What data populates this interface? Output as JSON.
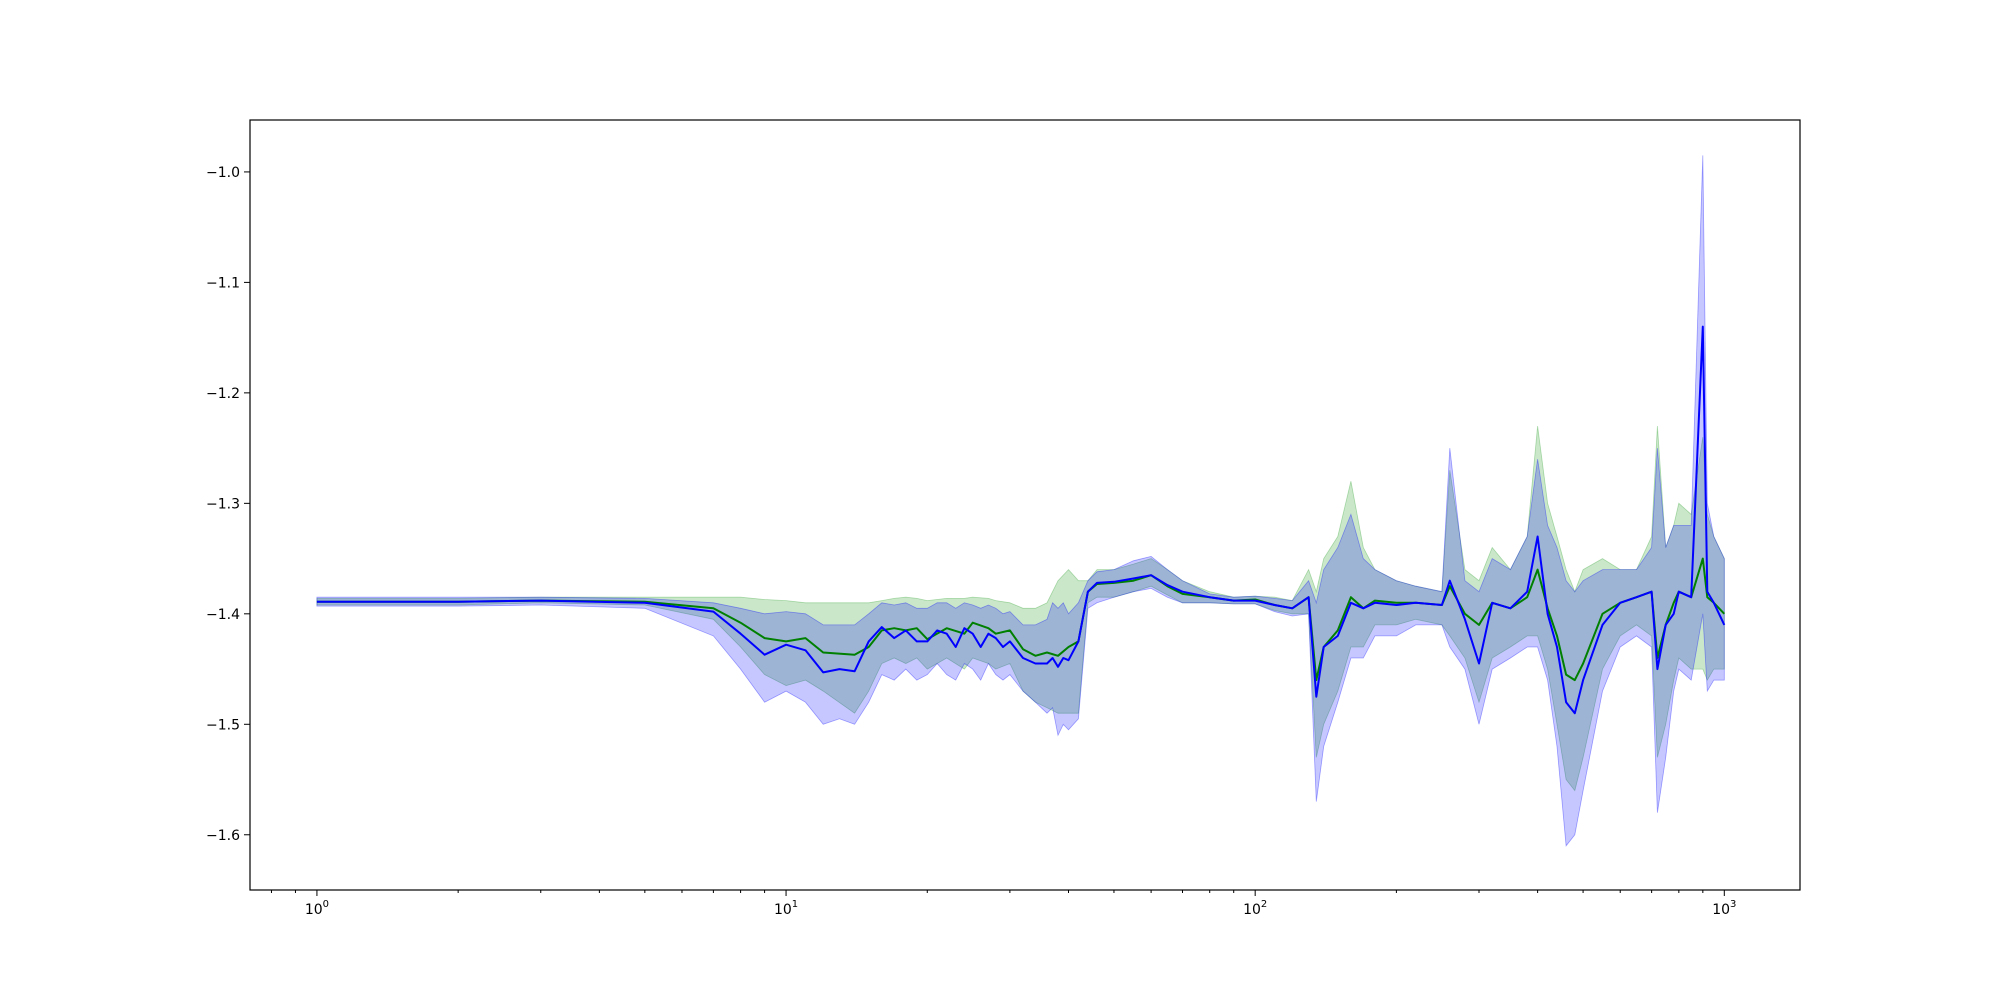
{
  "chart_data": {
    "type": "line",
    "title": "",
    "xlabel": "",
    "ylabel": "",
    "xscale": "log",
    "xlim": [
      0.72,
      1450
    ],
    "ylim": [
      -1.65,
      -0.953
    ],
    "grid": false,
    "y_ticks": [
      -1.0,
      -1.1,
      -1.2,
      -1.3,
      -1.4,
      -1.5,
      -1.6
    ],
    "y_tick_labels": [
      "−1.0",
      "−1.1",
      "−1.2",
      "−1.3",
      "−1.4",
      "−1.5",
      "−1.6"
    ],
    "x_ticks": [
      1,
      10,
      100,
      1000
    ],
    "x_tick_labels": [
      {
        "base": "10",
        "exp": "0"
      },
      {
        "base": "10",
        "exp": "1"
      },
      {
        "base": "10",
        "exp": "2"
      },
      {
        "base": "10",
        "exp": "3"
      }
    ],
    "colors": {
      "green_line": "#008000",
      "green_band": "#2ca02c",
      "blue_line": "#0000ff",
      "blue_band": "#0000ff",
      "overlap_band": "#5b7db8"
    },
    "series": [
      {
        "color": "#008000",
        "x": [
          1,
          2,
          3,
          5,
          7,
          8,
          9,
          10,
          11,
          12,
          14,
          15,
          16,
          17,
          18,
          19,
          20,
          22,
          24,
          25,
          27,
          28,
          30,
          32,
          34,
          36,
          38,
          40,
          42,
          44,
          46,
          50,
          55,
          60,
          65,
          70,
          80,
          90,
          100,
          110,
          120,
          130,
          135,
          140,
          150,
          160,
          170,
          180,
          200,
          220,
          250,
          260,
          280,
          300,
          320,
          350,
          380,
          400,
          420,
          440,
          460,
          480,
          500,
          550,
          600,
          650,
          700,
          720,
          750,
          780,
          800,
          850,
          900,
          920,
          950,
          1000
        ],
        "y": [
          -1.389,
          -1.389,
          -1.388,
          -1.389,
          -1.395,
          -1.408,
          -1.422,
          -1.425,
          -1.422,
          -1.435,
          -1.437,
          -1.43,
          -1.415,
          -1.413,
          -1.415,
          -1.413,
          -1.423,
          -1.413,
          -1.418,
          -1.408,
          -1.413,
          -1.418,
          -1.415,
          -1.432,
          -1.438,
          -1.435,
          -1.438,
          -1.43,
          -1.425,
          -1.38,
          -1.373,
          -1.372,
          -1.37,
          -1.365,
          -1.375,
          -1.382,
          -1.385,
          -1.388,
          -1.387,
          -1.392,
          -1.395,
          -1.385,
          -1.46,
          -1.43,
          -1.415,
          -1.385,
          -1.395,
          -1.388,
          -1.39,
          -1.39,
          -1.392,
          -1.375,
          -1.4,
          -1.41,
          -1.39,
          -1.395,
          -1.385,
          -1.36,
          -1.395,
          -1.42,
          -1.455,
          -1.46,
          -1.445,
          -1.4,
          -1.39,
          -1.385,
          -1.38,
          -1.44,
          -1.41,
          -1.39,
          -1.38,
          -1.385,
          -1.35,
          -1.385,
          -1.39,
          -1.4
        ],
        "lower": [
          -1.392,
          -1.392,
          -1.39,
          -1.392,
          -1.405,
          -1.43,
          -1.455,
          -1.465,
          -1.46,
          -1.47,
          -1.49,
          -1.47,
          -1.445,
          -1.44,
          -1.445,
          -1.44,
          -1.45,
          -1.44,
          -1.45,
          -1.44,
          -1.445,
          -1.45,
          -1.445,
          -1.47,
          -1.48,
          -1.485,
          -1.49,
          -1.49,
          -1.49,
          -1.39,
          -1.385,
          -1.385,
          -1.38,
          -1.375,
          -1.383,
          -1.39,
          -1.39,
          -1.391,
          -1.391,
          -1.397,
          -1.4,
          -1.4,
          -1.53,
          -1.5,
          -1.47,
          -1.43,
          -1.43,
          -1.41,
          -1.41,
          -1.405,
          -1.41,
          -1.42,
          -1.44,
          -1.48,
          -1.44,
          -1.43,
          -1.42,
          -1.42,
          -1.45,
          -1.5,
          -1.55,
          -1.56,
          -1.53,
          -1.45,
          -1.42,
          -1.41,
          -1.42,
          -1.53,
          -1.5,
          -1.46,
          -1.44,
          -1.45,
          -1.45,
          -1.46,
          -1.45,
          -1.45
        ],
        "upper": [
          -1.386,
          -1.386,
          -1.385,
          -1.385,
          -1.385,
          -1.385,
          -1.387,
          -1.388,
          -1.39,
          -1.39,
          -1.39,
          -1.39,
          -1.388,
          -1.386,
          -1.385,
          -1.386,
          -1.388,
          -1.386,
          -1.386,
          -1.385,
          -1.386,
          -1.388,
          -1.39,
          -1.395,
          -1.395,
          -1.39,
          -1.37,
          -1.36,
          -1.37,
          -1.37,
          -1.36,
          -1.36,
          -1.355,
          -1.35,
          -1.36,
          -1.37,
          -1.38,
          -1.385,
          -1.384,
          -1.385,
          -1.388,
          -1.36,
          -1.38,
          -1.35,
          -1.33,
          -1.28,
          -1.34,
          -1.36,
          -1.37,
          -1.375,
          -1.38,
          -1.27,
          -1.36,
          -1.37,
          -1.34,
          -1.36,
          -1.33,
          -1.23,
          -1.3,
          -1.33,
          -1.36,
          -1.38,
          -1.36,
          -1.35,
          -1.36,
          -1.36,
          -1.33,
          -1.23,
          -1.34,
          -1.32,
          -1.3,
          -1.31,
          -1.24,
          -1.31,
          -1.33,
          -1.35
        ]
      },
      {
        "color": "#0000ff",
        "x": [
          1,
          2,
          3,
          5,
          7,
          8,
          9,
          10,
          11,
          12,
          13,
          14,
          15,
          16,
          17,
          18,
          19,
          20,
          21,
          22,
          23,
          24,
          25,
          26,
          27,
          28,
          29,
          30,
          32,
          34,
          36,
          37,
          38,
          39,
          40,
          42,
          44,
          46,
          50,
          55,
          60,
          65,
          70,
          80,
          90,
          100,
          110,
          120,
          130,
          135,
          140,
          150,
          160,
          170,
          180,
          200,
          220,
          250,
          260,
          280,
          300,
          320,
          350,
          380,
          400,
          420,
          440,
          460,
          480,
          500,
          550,
          600,
          650,
          700,
          720,
          750,
          780,
          800,
          850,
          900,
          920,
          950,
          1000
        ],
        "y": [
          -1.389,
          -1.389,
          -1.388,
          -1.39,
          -1.398,
          -1.418,
          -1.437,
          -1.428,
          -1.433,
          -1.453,
          -1.45,
          -1.452,
          -1.425,
          -1.412,
          -1.422,
          -1.415,
          -1.425,
          -1.425,
          -1.415,
          -1.418,
          -1.43,
          -1.413,
          -1.418,
          -1.43,
          -1.418,
          -1.422,
          -1.43,
          -1.425,
          -1.44,
          -1.445,
          -1.445,
          -1.44,
          -1.448,
          -1.44,
          -1.442,
          -1.425,
          -1.38,
          -1.372,
          -1.371,
          -1.368,
          -1.365,
          -1.374,
          -1.38,
          -1.385,
          -1.388,
          -1.388,
          -1.392,
          -1.395,
          -1.385,
          -1.475,
          -1.43,
          -1.42,
          -1.39,
          -1.395,
          -1.39,
          -1.392,
          -1.39,
          -1.392,
          -1.37,
          -1.405,
          -1.445,
          -1.39,
          -1.395,
          -1.38,
          -1.33,
          -1.4,
          -1.43,
          -1.48,
          -1.49,
          -1.46,
          -1.41,
          -1.39,
          -1.385,
          -1.38,
          -1.45,
          -1.41,
          -1.4,
          -1.38,
          -1.385,
          -1.14,
          -1.38,
          -1.39,
          -1.41
        ],
        "lower": [
          -1.393,
          -1.393,
          -1.392,
          -1.395,
          -1.42,
          -1.45,
          -1.48,
          -1.47,
          -1.48,
          -1.5,
          -1.495,
          -1.5,
          -1.48,
          -1.455,
          -1.46,
          -1.45,
          -1.46,
          -1.455,
          -1.445,
          -1.455,
          -1.46,
          -1.445,
          -1.45,
          -1.46,
          -1.445,
          -1.455,
          -1.46,
          -1.455,
          -1.47,
          -1.48,
          -1.49,
          -1.485,
          -1.51,
          -1.5,
          -1.505,
          -1.495,
          -1.395,
          -1.39,
          -1.385,
          -1.38,
          -1.377,
          -1.385,
          -1.39,
          -1.39,
          -1.391,
          -1.391,
          -1.398,
          -1.402,
          -1.4,
          -1.57,
          -1.52,
          -1.48,
          -1.44,
          -1.44,
          -1.42,
          -1.42,
          -1.41,
          -1.41,
          -1.43,
          -1.45,
          -1.5,
          -1.45,
          -1.44,
          -1.43,
          -1.43,
          -1.46,
          -1.52,
          -1.61,
          -1.6,
          -1.56,
          -1.47,
          -1.43,
          -1.42,
          -1.43,
          -1.58,
          -1.53,
          -1.47,
          -1.45,
          -1.46,
          -1.4,
          -1.47,
          -1.46,
          -1.46
        ],
        "upper": [
          -1.385,
          -1.385,
          -1.385,
          -1.386,
          -1.39,
          -1.395,
          -1.4,
          -1.398,
          -1.4,
          -1.41,
          -1.41,
          -1.41,
          -1.4,
          -1.39,
          -1.392,
          -1.39,
          -1.395,
          -1.395,
          -1.39,
          -1.39,
          -1.395,
          -1.39,
          -1.392,
          -1.395,
          -1.392,
          -1.395,
          -1.4,
          -1.398,
          -1.41,
          -1.41,
          -1.405,
          -1.39,
          -1.395,
          -1.39,
          -1.4,
          -1.39,
          -1.37,
          -1.362,
          -1.36,
          -1.352,
          -1.348,
          -1.36,
          -1.37,
          -1.382,
          -1.385,
          -1.384,
          -1.386,
          -1.388,
          -1.37,
          -1.39,
          -1.36,
          -1.34,
          -1.31,
          -1.35,
          -1.36,
          -1.37,
          -1.375,
          -1.38,
          -1.25,
          -1.37,
          -1.38,
          -1.35,
          -1.36,
          -1.33,
          -1.26,
          -1.32,
          -1.34,
          -1.37,
          -1.38,
          -1.37,
          -1.36,
          -1.36,
          -1.36,
          -1.34,
          -1.25,
          -1.34,
          -1.32,
          -1.32,
          -1.32,
          -0.985,
          -1.3,
          -1.33,
          -1.35
        ]
      }
    ]
  }
}
